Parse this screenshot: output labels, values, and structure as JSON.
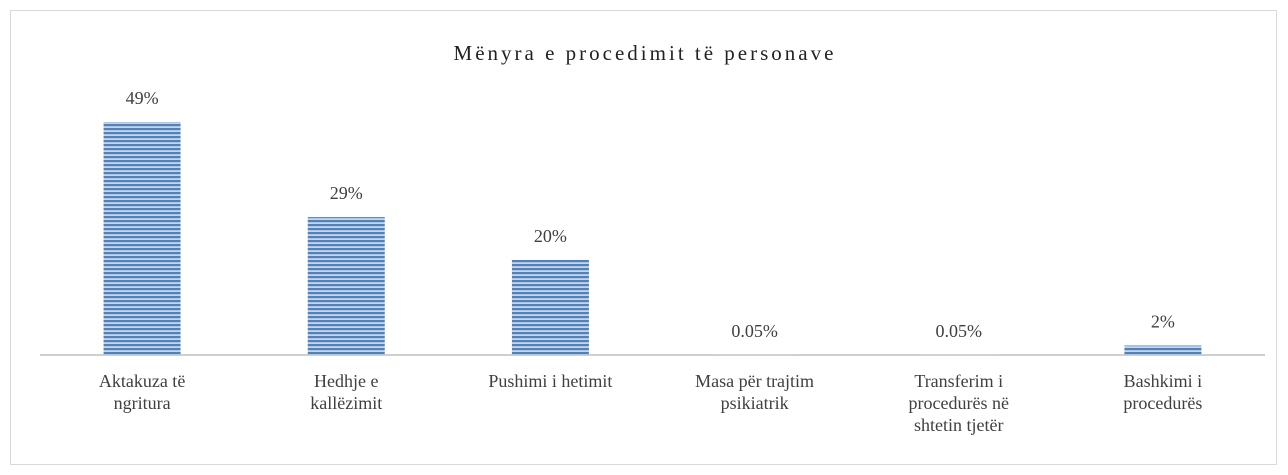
{
  "chart_data": {
    "type": "bar",
    "title": "Mënyra e procedimit të personave",
    "categories": [
      "Aktakuza të ngritura",
      "Hedhje e kallëzimit",
      "Pushimi i hetimit",
      "Masa për trajtim psikiatrik",
      "Transferim i procedurës në shtetin tjetër",
      "Bashkimi i procedurës"
    ],
    "values": [
      49,
      29,
      20,
      0.05,
      0.05,
      2
    ],
    "value_labels": [
      "49%",
      "29%",
      "20%",
      "0.05%",
      "0.05%",
      "2%"
    ],
    "color": "#4f81bd"
  }
}
